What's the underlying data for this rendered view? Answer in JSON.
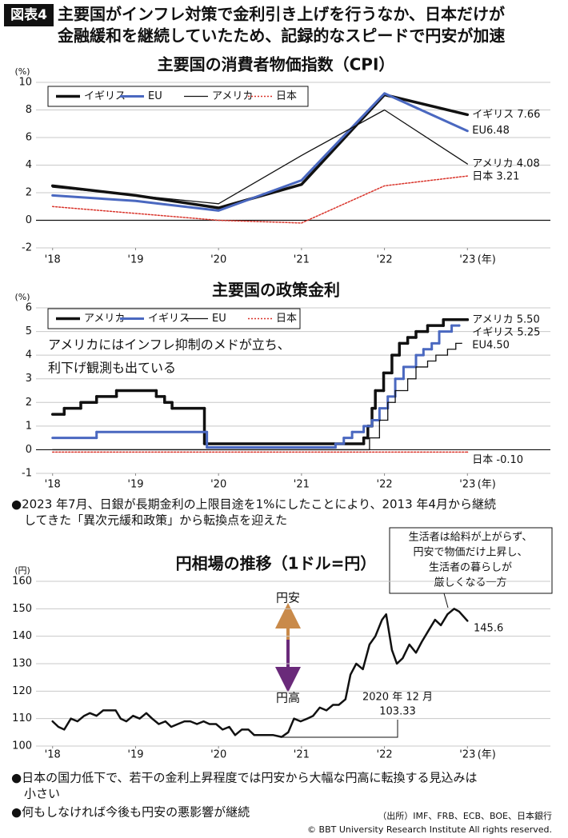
{
  "header": {
    "badge": "図表4",
    "title": [
      "主要国がインフレ対策で金利引き上げを行うなか、日本だけが",
      "金融緩和を継続していたため、記録的なスピードで円安が加速"
    ]
  },
  "chart_data": [
    {
      "type": "line",
      "title": "主要国の消費者物価指数（CPI）",
      "yunit": "(%)",
      "xunit": "(年)",
      "xlim": [
        2017.8,
        2024
      ],
      "ylim": [
        -2,
        10
      ],
      "yticks": [
        -2,
        0,
        2,
        4,
        6,
        8,
        10
      ],
      "xticks": [
        {
          "value": 2018,
          "label": "'18"
        },
        {
          "value": 2019,
          "label": "'19"
        },
        {
          "value": 2020,
          "label": "'20"
        },
        {
          "value": 2021,
          "label": "'21"
        },
        {
          "value": 2022,
          "label": "'22"
        },
        {
          "value": 2023,
          "label": "'23"
        }
      ],
      "grid": true,
      "legend": true,
      "series": [
        {
          "name": "イギリス",
          "color": "#111111",
          "width": 3.5,
          "x": [
            2018,
            2019,
            2020,
            2021,
            2022,
            2023
          ],
          "values": [
            2.5,
            1.8,
            0.9,
            2.6,
            9.1,
            7.66
          ],
          "value_labels": [
            null,
            null,
            null,
            null,
            null,
            "イギリス 7.66"
          ]
        },
        {
          "name": "EU",
          "color": "#4a68c0",
          "width": 3,
          "x": [
            2018,
            2019,
            2020,
            2021,
            2022,
            2023
          ],
          "values": [
            1.8,
            1.4,
            0.7,
            2.9,
            9.2,
            6.48
          ],
          "value_labels": [
            null,
            null,
            null,
            null,
            null,
            "EU6.48"
          ]
        },
        {
          "name": "アメリカ",
          "color": "#111111",
          "width": 1.3,
          "x": [
            2018,
            2019,
            2020,
            2021,
            2022,
            2023
          ],
          "values": [
            2.4,
            1.8,
            1.2,
            4.7,
            8.0,
            4.08
          ],
          "value_labels": [
            null,
            null,
            null,
            null,
            null,
            "アメリカ 4.08"
          ]
        },
        {
          "name": "日本",
          "color": "#d9342b",
          "width": 1.5,
          "dash": "2,2",
          "x": [
            2018,
            2019,
            2020,
            2021,
            2022,
            2023
          ],
          "values": [
            1.0,
            0.5,
            0.0,
            -0.2,
            2.5,
            3.21
          ],
          "value_labels": [
            null,
            null,
            null,
            null,
            null,
            "日本 3.21"
          ]
        }
      ]
    },
    {
      "type": "line",
      "step": true,
      "title": "主要国の政策金利",
      "yunit": "(%)",
      "xunit": "(年)",
      "xlim": [
        2017.8,
        2024
      ],
      "ylim": [
        -1,
        6
      ],
      "yticks": [
        -1,
        0,
        1,
        2,
        3,
        4,
        5,
        6
      ],
      "xticks": [
        {
          "value": 2018,
          "label": "'18"
        },
        {
          "value": 2019,
          "label": "'19"
        },
        {
          "value": 2020,
          "label": "'20"
        },
        {
          "value": 2021,
          "label": "'21"
        },
        {
          "value": 2022,
          "label": "'22"
        },
        {
          "value": 2023,
          "label": "'23"
        }
      ],
      "grid": true,
      "legend": true,
      "annotation": [
        "アメリカにはインフレ抑制のメドが立ち、",
        "利下げ観測も出ている"
      ],
      "series": [
        {
          "name": "アメリカ",
          "color": "#111111",
          "width": 3.5,
          "x": [
            2018.0,
            2018.14,
            2018.34,
            2018.53,
            2018.77,
            2019.25,
            2019.35,
            2019.44,
            2019.83,
            2021.75,
            2021.8,
            2021.85,
            2021.89,
            2021.99,
            2022.09,
            2022.18,
            2022.28,
            2022.38,
            2022.52,
            2022.71,
            2023.0
          ],
          "values": [
            1.5,
            1.75,
            2.0,
            2.25,
            2.5,
            2.25,
            2.0,
            1.75,
            0.25,
            0.5,
            1.0,
            1.75,
            2.5,
            3.25,
            4.0,
            4.5,
            4.75,
            5.0,
            5.25,
            5.5,
            5.5
          ],
          "value_labels": [
            null,
            null,
            null,
            null,
            null,
            null,
            null,
            null,
            null,
            null,
            null,
            null,
            null,
            null,
            null,
            null,
            null,
            null,
            null,
            null,
            "アメリカ 5.50"
          ]
        },
        {
          "name": "イギリス",
          "color": "#4a68c0",
          "width": 3,
          "x": [
            2018.0,
            2018.53,
            2019.86,
            2021.41,
            2021.51,
            2021.61,
            2021.75,
            2021.85,
            2021.94,
            2022.04,
            2022.13,
            2022.23,
            2022.38,
            2022.47,
            2022.57,
            2022.66,
            2022.81,
            2022.9
          ],
          "values": [
            0.5,
            0.75,
            0.1,
            0.25,
            0.5,
            0.75,
            1.0,
            1.25,
            1.75,
            2.25,
            3.0,
            3.5,
            4.0,
            4.25,
            4.5,
            5.0,
            5.25,
            5.25
          ],
          "value_labels": [
            null,
            null,
            null,
            null,
            null,
            null,
            null,
            null,
            null,
            null,
            null,
            null,
            null,
            null,
            null,
            null,
            null,
            "イギリス 5.25"
          ]
        },
        {
          "name": "EU",
          "color": "#111111",
          "width": 1.3,
          "x": [
            2018.0,
            2021.82,
            2021.94,
            2022.04,
            2022.13,
            2022.28,
            2022.38,
            2022.52,
            2022.62,
            2022.76,
            2022.86,
            2022.93
          ],
          "values": [
            0,
            0.5,
            1.25,
            2.0,
            2.5,
            3.0,
            3.5,
            3.75,
            4.0,
            4.25,
            4.5,
            4.5
          ],
          "value_labels": [
            null,
            null,
            null,
            null,
            null,
            null,
            null,
            null,
            null,
            null,
            null,
            "EU4.50"
          ]
        },
        {
          "name": "日本",
          "color": "#d9342b",
          "width": 1.5,
          "dash": "2,2",
          "x": [
            2018.0,
            2023.0
          ],
          "values": [
            -0.1,
            -0.1
          ],
          "value_labels": [
            null,
            "日本 -0.10"
          ]
        }
      ]
    },
    {
      "type": "line",
      "title": "円相場の推移（1ドル=円）",
      "yunit": "(円)",
      "xunit": "(年)",
      "xlim": [
        2017.8,
        2024
      ],
      "ylim": [
        100,
        160
      ],
      "yticks": [
        100,
        110,
        120,
        130,
        140,
        150,
        160
      ],
      "xticks": [
        {
          "value": 2018,
          "label": "'18"
        },
        {
          "value": 2019,
          "label": "'19"
        },
        {
          "value": 2020,
          "label": "'20"
        },
        {
          "value": 2021,
          "label": "'21"
        },
        {
          "value": 2022,
          "label": "'22"
        },
        {
          "value": 2023,
          "label": "'23"
        }
      ],
      "grid": true,
      "legend": false,
      "annotation": "2020 年 12 月",
      "arrow_labels": [
        "円安",
        "円高"
      ],
      "callout": [
        "生活者は給料が上がらず、",
        "円安で物価だけ上昇し、",
        "生活者の暮らしが",
        "厳しくなる一方"
      ],
      "series": [
        {
          "color": "#111111",
          "width": 2.5,
          "x": [
            2018.0,
            2018.07,
            2018.14,
            2018.22,
            2018.3,
            2018.38,
            2018.45,
            2018.53,
            2018.61,
            2018.68,
            2018.76,
            2018.82,
            2018.89,
            2018.97,
            2019.05,
            2019.13,
            2019.2,
            2019.28,
            2019.36,
            2019.43,
            2019.51,
            2019.59,
            2019.66,
            2019.74,
            2019.82,
            2019.89,
            2019.97,
            2020.05,
            2020.13,
            2020.2,
            2020.28,
            2020.36,
            2020.43,
            2020.51,
            2020.59,
            2020.66,
            2020.76,
            2020.84,
            2020.91,
            2020.99,
            2021.07,
            2021.14,
            2021.22,
            2021.3,
            2021.38,
            2021.45,
            2021.53,
            2021.59,
            2021.66,
            2021.74,
            2021.82,
            2021.89,
            2021.97,
            2022.02,
            2022.09,
            2022.15,
            2022.22,
            2022.3,
            2022.38,
            2022.45,
            2022.53,
            2022.61,
            2022.68,
            2022.76,
            2022.84,
            2022.9,
            2023.0
          ],
          "values": [
            109,
            107,
            106,
            110,
            109,
            111,
            112,
            111,
            113,
            113,
            113,
            110,
            109,
            111,
            110,
            112,
            110,
            108,
            109,
            107,
            108,
            109,
            109,
            108,
            109,
            108,
            108,
            106,
            107,
            104,
            106,
            106,
            104,
            104,
            104,
            104,
            103.33,
            105,
            110,
            109,
            110,
            111,
            114,
            113,
            115,
            115,
            117,
            126,
            130,
            128,
            137,
            140,
            146,
            148,
            135,
            130,
            132,
            137,
            134,
            138,
            142,
            146,
            144,
            148,
            150,
            149,
            145.6
          ]
        }
      ]
    }
  ],
  "notes": [
    [
      "●2023 年7月、日銀が長期金利の上限目途を1%にしたことにより、2013 年4月から継続",
      "してきた「異次元緩和政策」から転換点を迎えた"
    ],
    [
      "●日本の国力低下で、若干の金利上昇程度では円安から大幅な円高に転換する見込みは",
      "小さい"
    ],
    [
      "●何もしなければ今後も円安の悪影響が継続"
    ]
  ],
  "source": "（出所）IMF、FRB、ECB、BOE、日本銀行",
  "copyright": "© BBT University Research Institute All rights reserved."
}
